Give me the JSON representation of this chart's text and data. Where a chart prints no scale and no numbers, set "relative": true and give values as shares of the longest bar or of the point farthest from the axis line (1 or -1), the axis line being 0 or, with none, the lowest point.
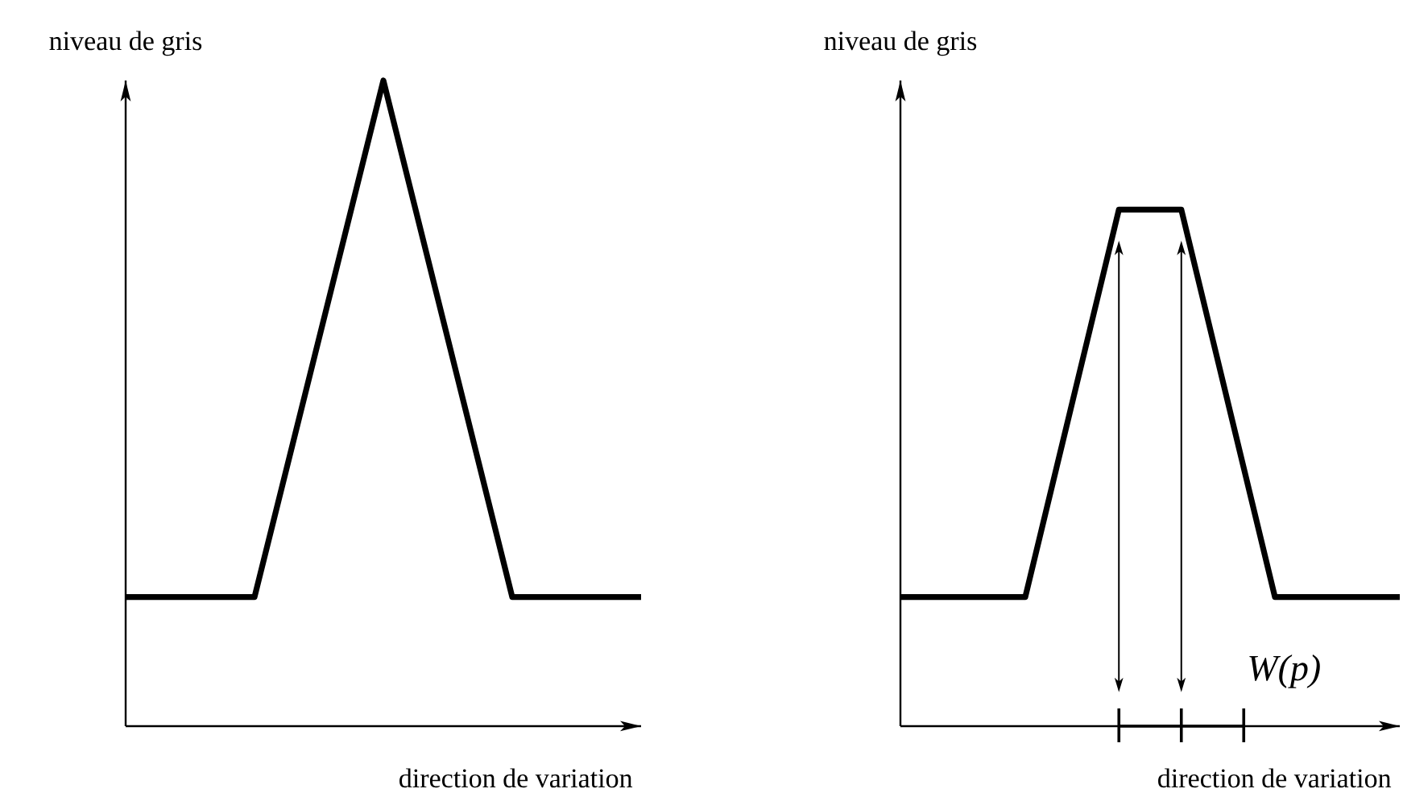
{
  "chart_data": [
    {
      "type": "line",
      "ylabel": "niveau de gris",
      "xlabel": "direction de variation",
      "categories": [
        null,
        null,
        null,
        null,
        null
      ],
      "relative": true,
      "series": [
        {
          "color": "#000000",
          "values": [
            0.2,
            0.2,
            1,
            0.2,
            0.2
          ]
        }
      ]
    },
    {
      "type": "line",
      "ylabel": "niveau de gris",
      "xlabel": "direction de variation",
      "categories": [
        null,
        null,
        null,
        null,
        null,
        null,
        null,
        null,
        null,
        null,
        null,
        null,
        null,
        null,
        null,
        null,
        null
      ],
      "relative": true,
      "series": [
        {
          "color": "#000000",
          "values": [
            0.25,
            0.25,
            0.25,
            0.25,
            0.25,
            0.5,
            0.75,
            1,
            1,
            1,
            0.75,
            0.5,
            0.25,
            0.25,
            0.25,
            0.25,
            0.25
          ]
        }
      ],
      "annotations": [
        "W(p)"
      ]
    }
  ]
}
